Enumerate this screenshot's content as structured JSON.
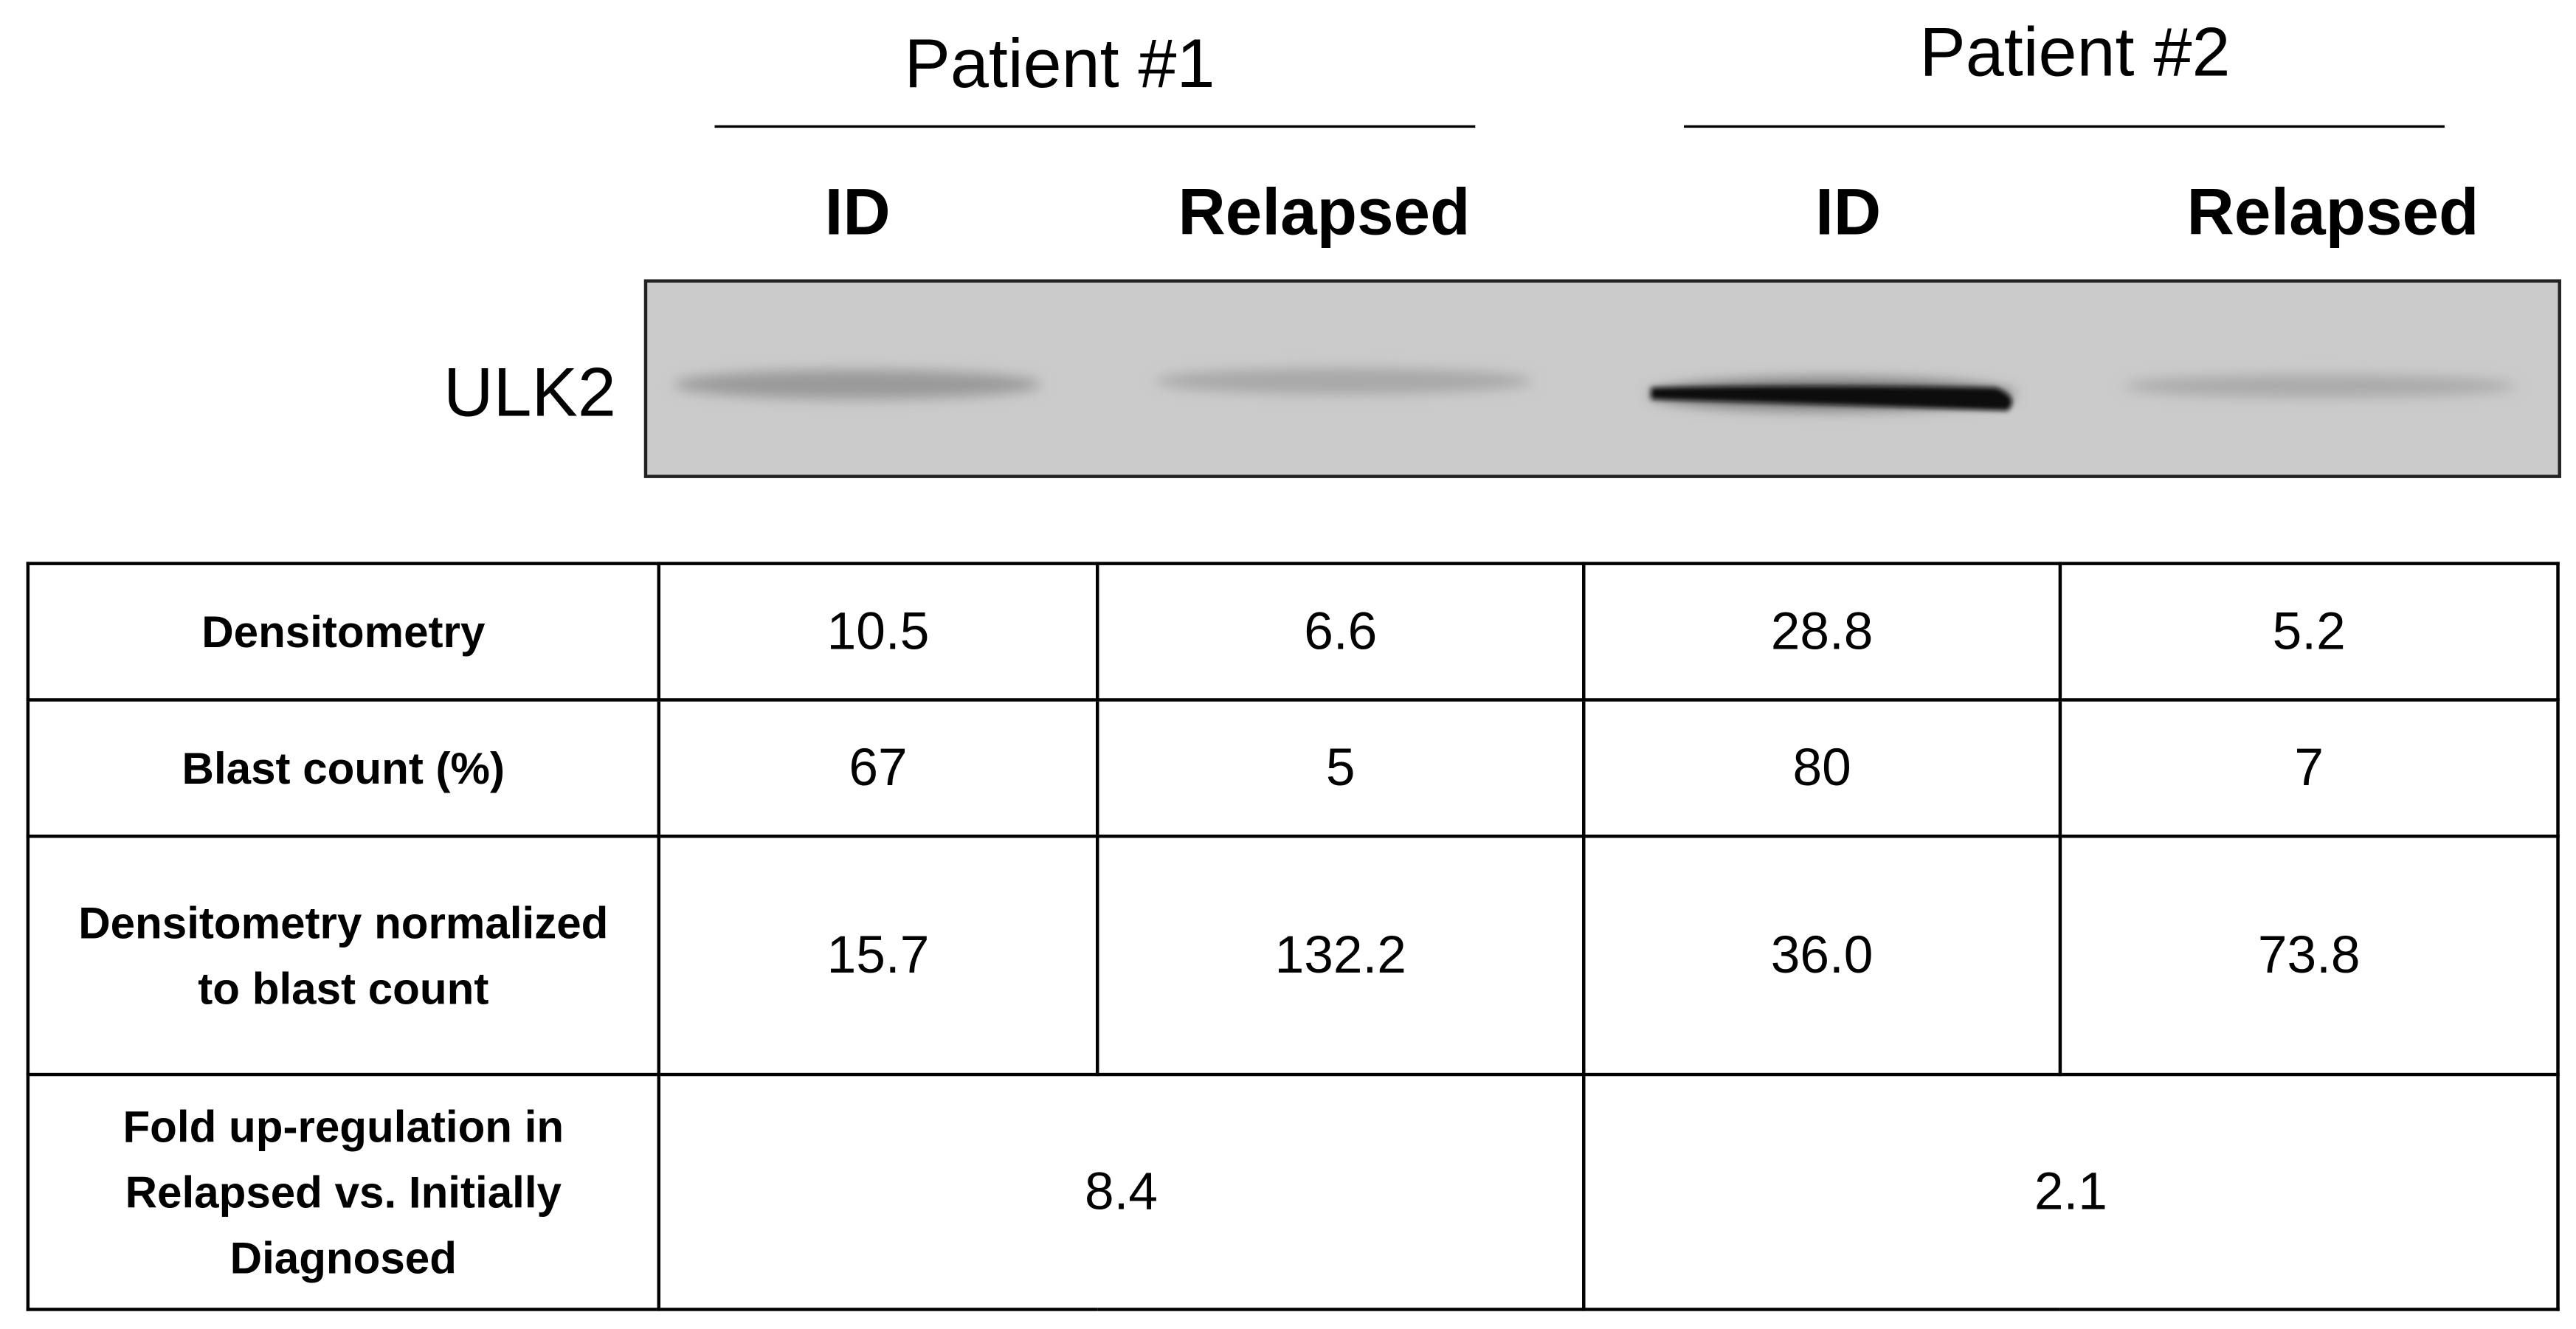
{
  "header": {
    "groups": [
      {
        "label": "Patient #1",
        "lanes": [
          "ID",
          "Relapsed"
        ]
      },
      {
        "label": "Patient #2",
        "lanes": [
          "ID",
          "Relapsed"
        ]
      }
    ]
  },
  "blot": {
    "label": "ULK2"
  },
  "table": {
    "rows": [
      [
        "Densitometry",
        "10.5",
        "6.6",
        "28.8",
        "5.2"
      ],
      [
        "Blast count (%)",
        "67",
        "5",
        "80",
        "7"
      ],
      [
        "Densitometry normalized to blast count",
        "15.7",
        "132.2",
        "36.0",
        "73.8"
      ],
      [
        "Fold up-regulation in Relapsed vs. Initially Diagnosed",
        "8.4",
        "2.1"
      ]
    ]
  }
}
